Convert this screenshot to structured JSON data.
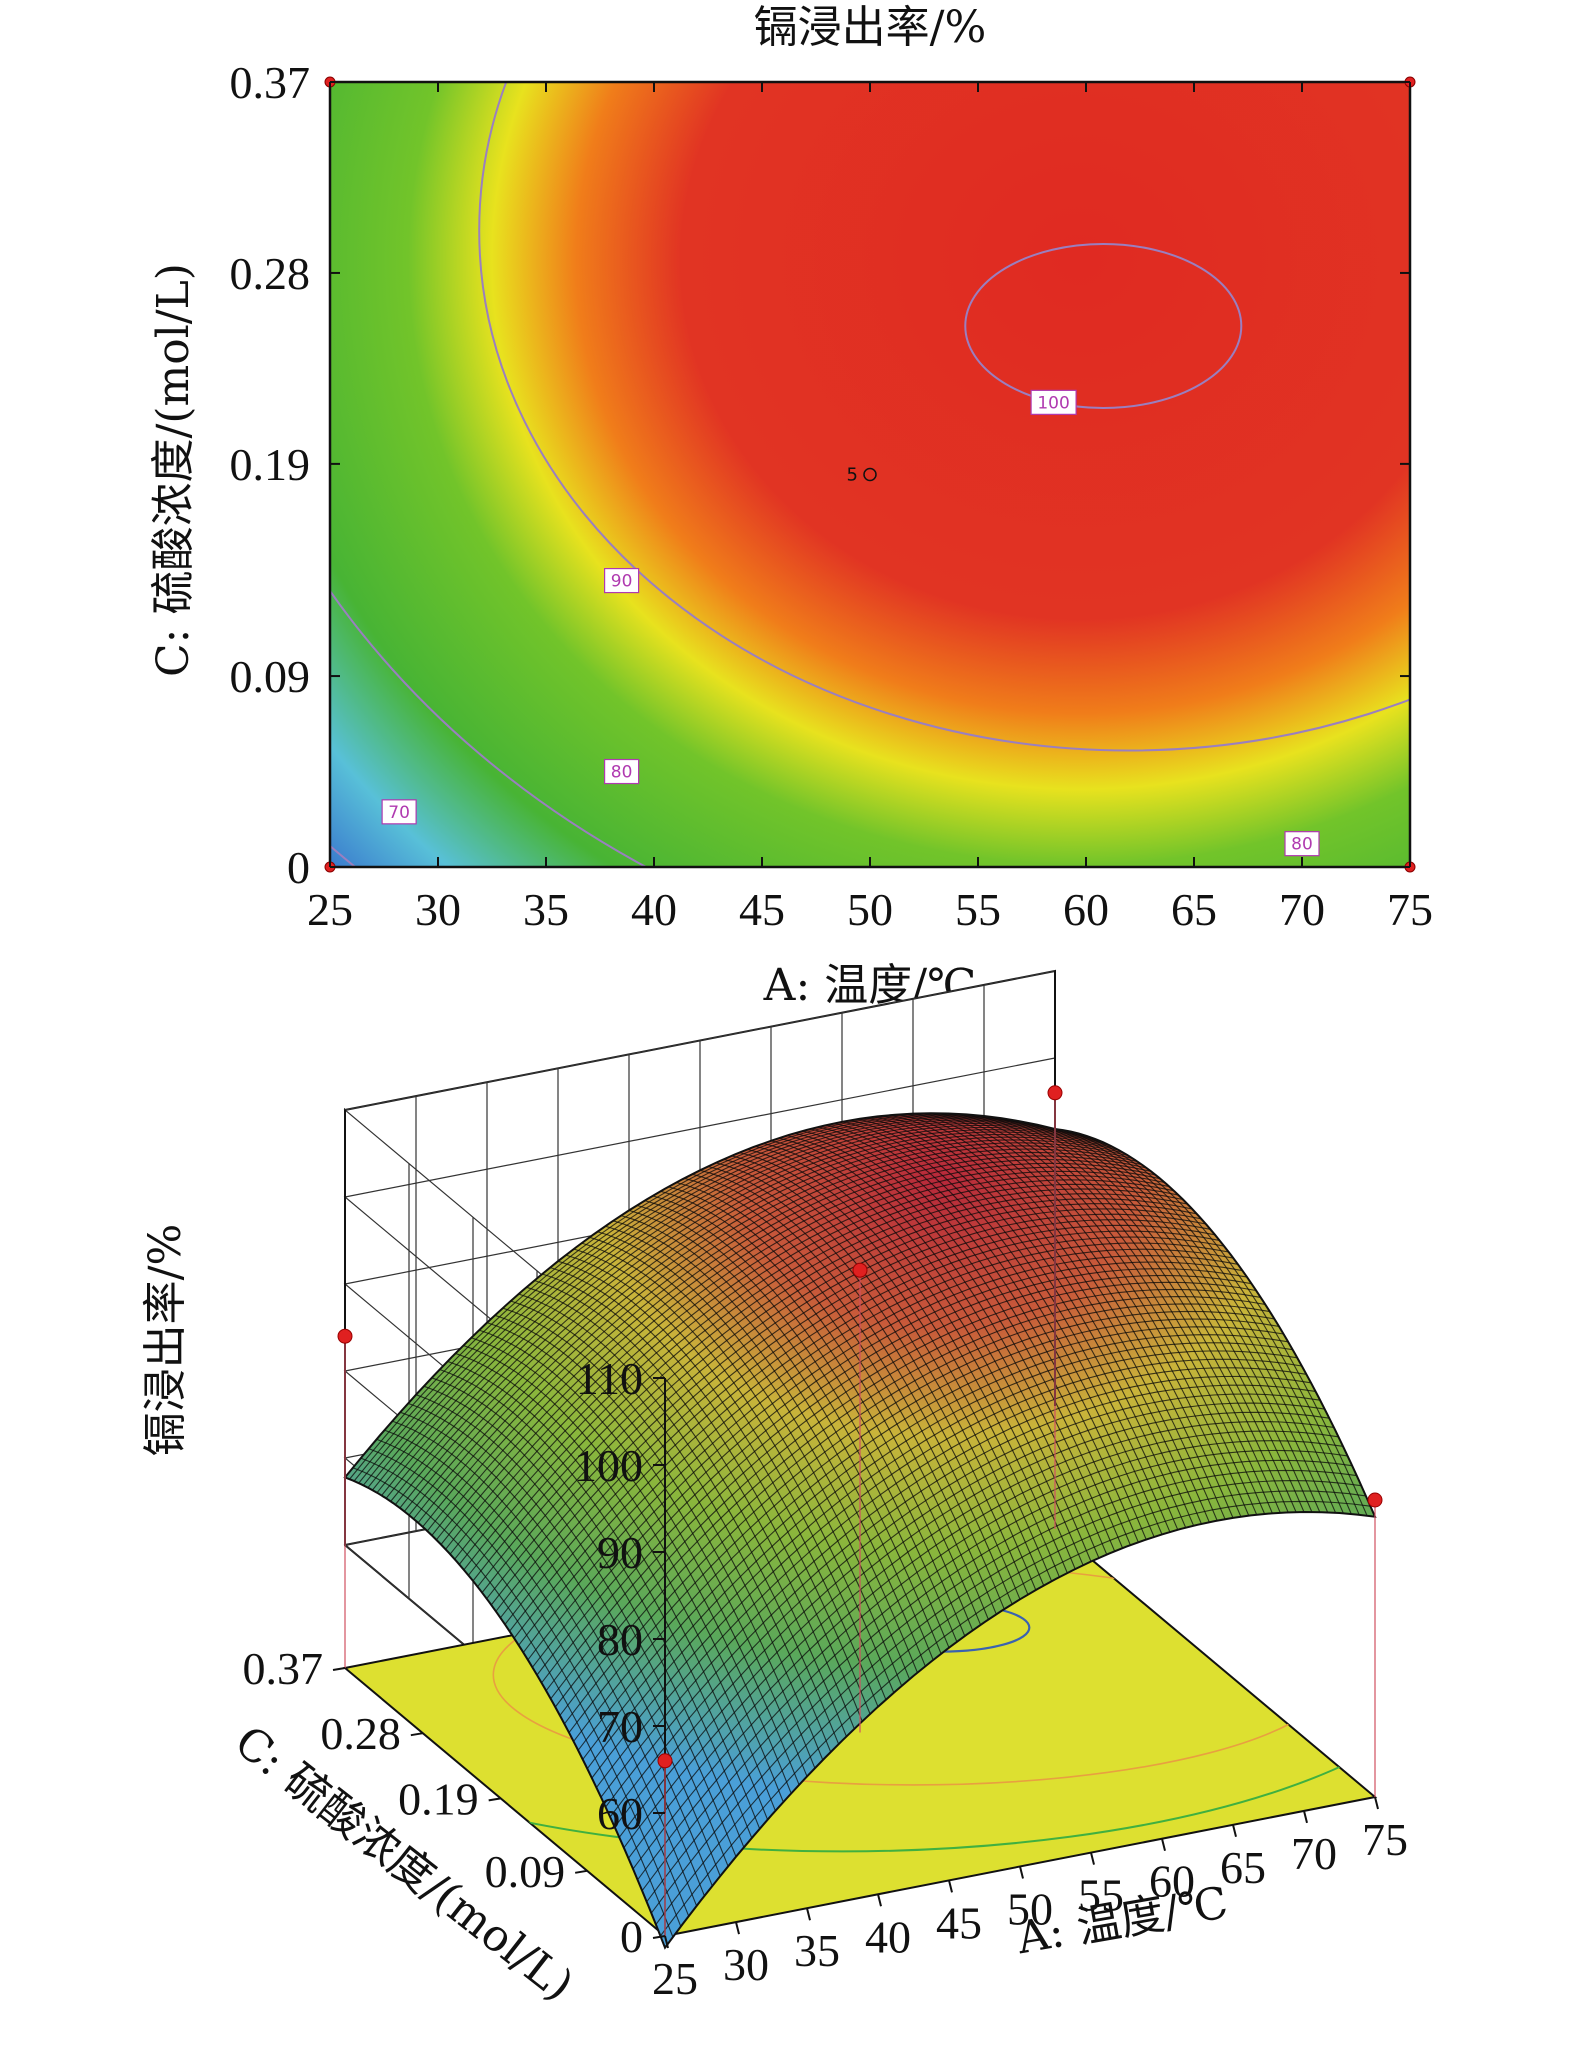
{
  "chart_data": [
    {
      "type": "contour",
      "title": "镉浸出率/%",
      "xlabel": "A: 温度/℃",
      "ylabel": "C: 硫酸浓度/(mol/L)",
      "xlim": [
        25,
        75
      ],
      "ylim": [
        0,
        0.37
      ],
      "x_ticks": [
        "25",
        "30",
        "35",
        "40",
        "45",
        "50",
        "55",
        "60",
        "65",
        "70",
        "75"
      ],
      "y_ticks": [
        "0",
        "0.09",
        "0.19",
        "0.28",
        "0.37"
      ],
      "y_tick_values": [
        0,
        0.09,
        0.19,
        0.28,
        0.37
      ],
      "colormap": [
        "#2b5cc8",
        "#56c1e8",
        "#46b832",
        "#6cc22a",
        "#e2e020",
        "#f08a18",
        "#e02c24"
      ],
      "contour_color": "#9a7fc0",
      "contour_levels": [
        {
          "label": "100",
          "at": {
            "x": 58.5,
            "y": 0.219
          }
        },
        {
          "label": "90",
          "at": {
            "x": 38.5,
            "y": 0.135
          }
        },
        {
          "label": "80",
          "at": {
            "x": 38.5,
            "y": 0.045
          }
        },
        {
          "label": "80",
          "at": {
            "x": 70.0,
            "y": 0.011
          }
        },
        {
          "label": "70",
          "at": {
            "x": 28.2,
            "y": 0.026
          }
        }
      ],
      "design_points": [
        {
          "x": 25,
          "y": 0.37
        },
        {
          "x": 75,
          "y": 0.37
        },
        {
          "x": 25,
          "y": 0
        },
        {
          "x": 75,
          "y": 0
        }
      ],
      "center_point": {
        "x": 50,
        "y": 0.185,
        "label": "5"
      }
    },
    {
      "type": "surface3d",
      "xlabel": "A: 温度/℃",
      "ylabel": "C: 硫酸浓度/(mol/L)",
      "zlabel": "镉浸出率/%",
      "xlim": [
        25,
        75
      ],
      "ylim": [
        0,
        0.37
      ],
      "zlim": [
        60,
        110
      ],
      "x_ticks": [
        "25",
        "30",
        "35",
        "40",
        "45",
        "50",
        "55",
        "60",
        "65",
        "70",
        "75"
      ],
      "y_ticks": [
        "0",
        "0.09",
        "0.19",
        "0.28",
        "0.37"
      ],
      "y_tick_values": [
        0,
        0.09,
        0.19,
        0.28,
        0.37
      ],
      "z_ticks": [
        "60",
        "70",
        "80",
        "90",
        "100",
        "110"
      ],
      "surface_colormap": [
        "#4aa0d8",
        "#5cae5a",
        "#9cc03a",
        "#d8d03a",
        "#d88040",
        "#c84050",
        "#1a1a1a"
      ],
      "floor_color": "#dde030",
      "design_points": [
        {
          "x": 25,
          "y": 0,
          "z": 66
        },
        {
          "x": 25,
          "y": 0.37,
          "z": 84
        },
        {
          "x": 75,
          "y": 0,
          "z": 80
        },
        {
          "x": 50,
          "y": 0.185,
          "z": 99
        },
        {
          "x": 75,
          "y": 0.37,
          "z": 96
        }
      ]
    }
  ]
}
